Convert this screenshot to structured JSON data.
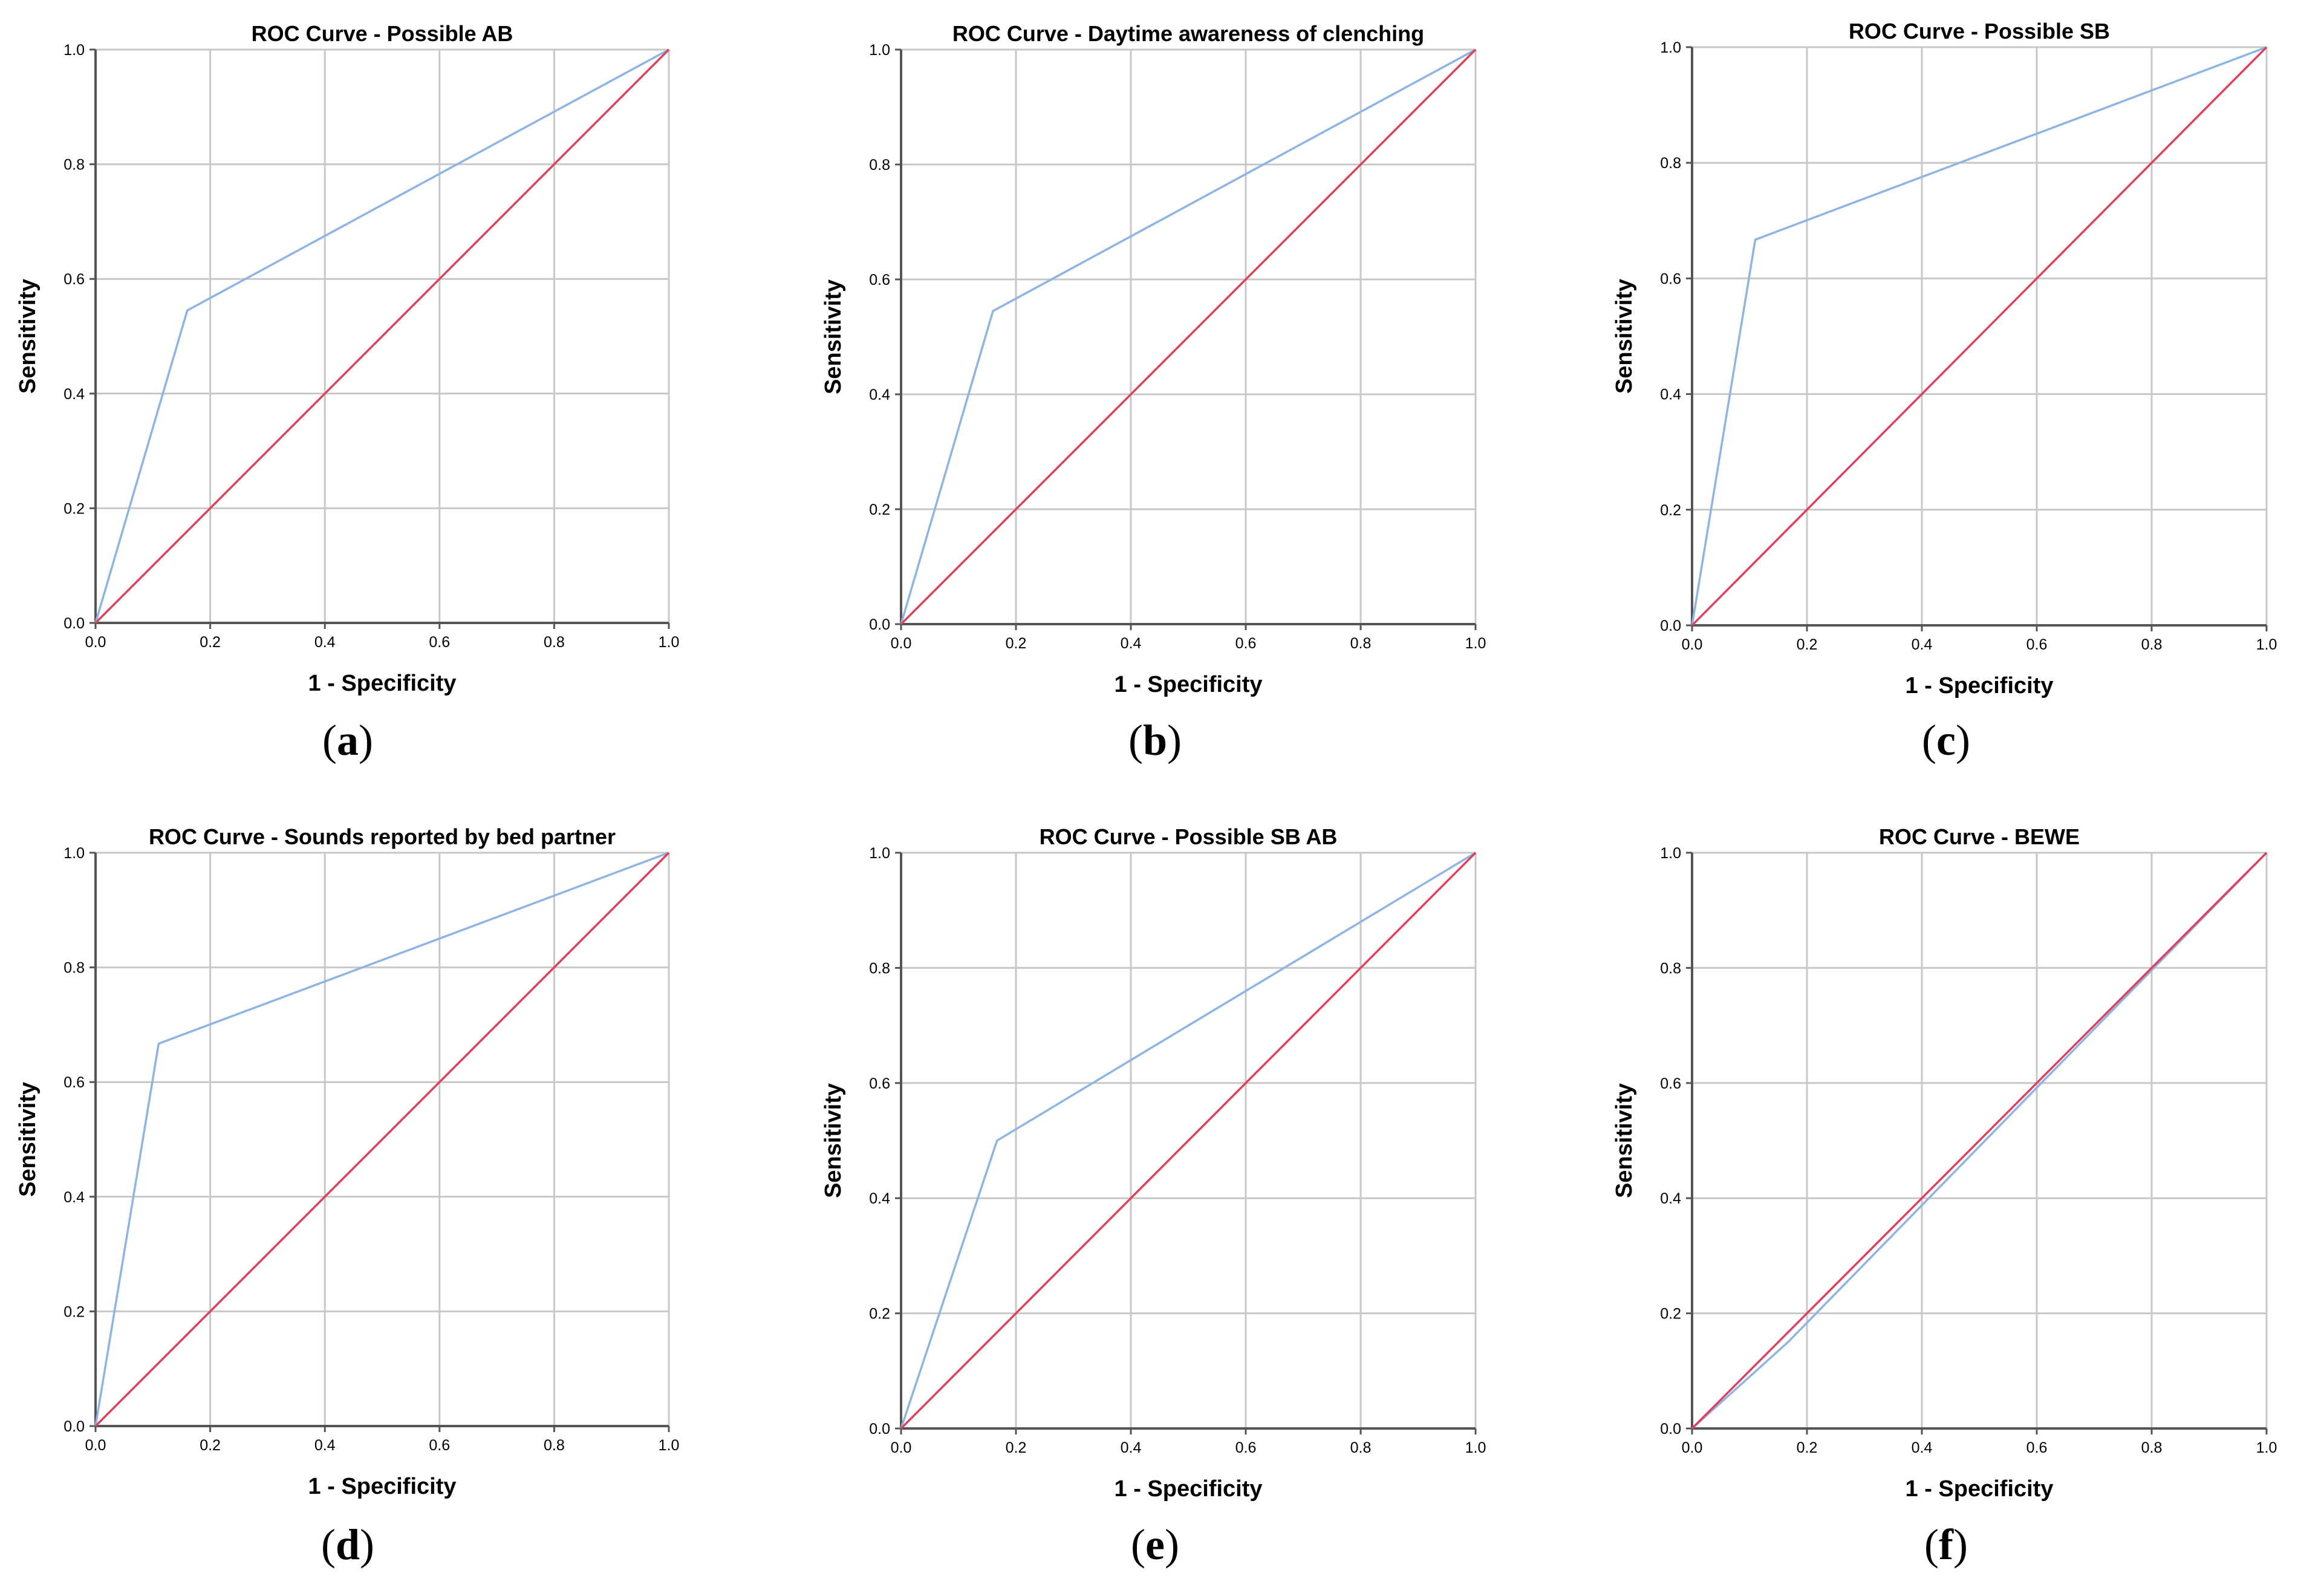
{
  "figure": {
    "captions": [
      "(a)",
      "(b)",
      "(c)",
      "(d)",
      "(e)",
      "(f)"
    ]
  },
  "colors": {
    "roc": "#8db4e2",
    "reference": "#e0405e",
    "grid": "#c8c8c8",
    "axis": "#000000",
    "text": "#000000"
  },
  "chart_data": [
    {
      "type": "line",
      "title": "ROC Curve - Possible AB",
      "xlabel": "1 - Specificity",
      "ylabel": "Sensitivity",
      "xlim": [
        0,
        1
      ],
      "ylim": [
        0,
        1
      ],
      "xticks": [
        "0.0",
        "0.2",
        "0.4",
        "0.6",
        "0.8",
        "1.0"
      ],
      "yticks": [
        "0.0",
        "0.2",
        "0.4",
        "0.6",
        "0.8",
        "1.0"
      ],
      "grid": true,
      "series": [
        {
          "name": "ROC",
          "x": [
            0,
            0.16,
            1
          ],
          "y": [
            0,
            0.545,
            1
          ]
        },
        {
          "name": "Reference Line",
          "x": [
            0,
            1
          ],
          "y": [
            0,
            1
          ]
        }
      ]
    },
    {
      "type": "line",
      "title": "ROC Curve - Daytime awareness of clenching",
      "xlabel": "1 - Specificity",
      "ylabel": "Sensitivity",
      "xlim": [
        0,
        1
      ],
      "ylim": [
        0,
        1
      ],
      "xticks": [
        "0.0",
        "0.2",
        "0.4",
        "0.6",
        "0.8",
        "1.0"
      ],
      "yticks": [
        "0.0",
        "0.2",
        "0.4",
        "0.6",
        "0.8",
        "1.0"
      ],
      "grid": true,
      "series": [
        {
          "name": "ROC",
          "x": [
            0,
            0.16,
            1
          ],
          "y": [
            0,
            0.545,
            1
          ]
        },
        {
          "name": "Reference Line",
          "x": [
            0,
            1
          ],
          "y": [
            0,
            1
          ]
        }
      ]
    },
    {
      "type": "line",
      "title": "ROC Curve - Possible SB",
      "xlabel": "1 - Specificity",
      "ylabel": "Sensitivity",
      "xlim": [
        0,
        1
      ],
      "ylim": [
        0,
        1
      ],
      "xticks": [
        "0.0",
        "0.2",
        "0.4",
        "0.6",
        "0.8",
        "1.0"
      ],
      "yticks": [
        "0.0",
        "0.2",
        "0.4",
        "0.6",
        "0.8",
        "1.0"
      ],
      "grid": true,
      "series": [
        {
          "name": "ROC",
          "x": [
            0,
            0.11,
            1
          ],
          "y": [
            0,
            0.667,
            1
          ]
        },
        {
          "name": "Reference Line",
          "x": [
            0,
            1
          ],
          "y": [
            0,
            1
          ]
        }
      ]
    },
    {
      "type": "line",
      "title": "ROC Curve - Sounds reported by bed partner",
      "xlabel": "1 - Specificity",
      "ylabel": "Sensitivity",
      "xlim": [
        0,
        1
      ],
      "ylim": [
        0,
        1
      ],
      "xticks": [
        "0.0",
        "0.2",
        "0.4",
        "0.6",
        "0.8",
        "1.0"
      ],
      "yticks": [
        "0.0",
        "0.2",
        "0.4",
        "0.6",
        "0.8",
        "1.0"
      ],
      "grid": true,
      "series": [
        {
          "name": "ROC",
          "x": [
            0,
            0.11,
            1
          ],
          "y": [
            0,
            0.667,
            1
          ]
        },
        {
          "name": "Reference Line",
          "x": [
            0,
            1
          ],
          "y": [
            0,
            1
          ]
        }
      ]
    },
    {
      "type": "line",
      "title": "ROC Curve - Possible SB AB",
      "xlabel": "1 - Specificity",
      "ylabel": "Sensitivity",
      "xlim": [
        0,
        1
      ],
      "ylim": [
        0,
        1
      ],
      "xticks": [
        "0.0",
        "0.2",
        "0.4",
        "0.6",
        "0.8",
        "1.0"
      ],
      "yticks": [
        "0.0",
        "0.2",
        "0.4",
        "0.6",
        "0.8",
        "1.0"
      ],
      "grid": true,
      "series": [
        {
          "name": "ROC",
          "x": [
            0,
            0.167,
            1
          ],
          "y": [
            0,
            0.5,
            1
          ]
        },
        {
          "name": "Reference Line",
          "x": [
            0,
            1
          ],
          "y": [
            0,
            1
          ]
        }
      ]
    },
    {
      "type": "line",
      "title": "ROC Curve - BEWE",
      "xlabel": "1 - Specificity",
      "ylabel": "Sensitivity",
      "xlim": [
        0,
        1
      ],
      "ylim": [
        0,
        1
      ],
      "xticks": [
        "0.0",
        "0.2",
        "0.4",
        "0.6",
        "0.8",
        "1.0"
      ],
      "yticks": [
        "0.0",
        "0.2",
        "0.4",
        "0.6",
        "0.8",
        "1.0"
      ],
      "grid": true,
      "series": [
        {
          "name": "ROC",
          "x": [
            0,
            0.167,
            1
          ],
          "y": [
            0,
            0.15,
            1
          ]
        },
        {
          "name": "Reference Line",
          "x": [
            0,
            1
          ],
          "y": [
            0,
            1
          ]
        }
      ]
    }
  ]
}
